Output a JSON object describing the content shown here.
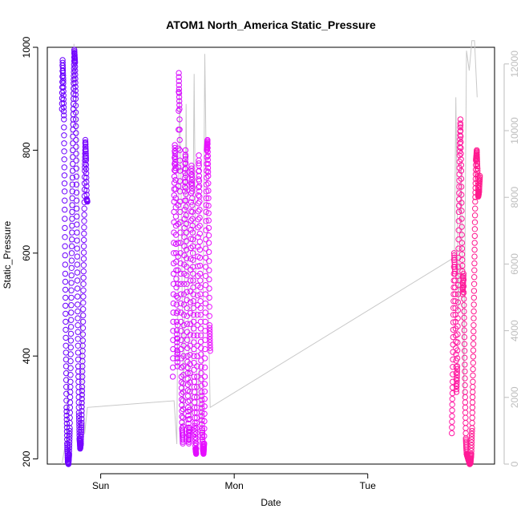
{
  "chart_data": {
    "type": "scatter",
    "title": "ATOM1 North_America Static_Pressure",
    "xlabel": "Date",
    "ylabel": "Static_Pressure",
    "x_ticks": [
      "Sun",
      "Mon",
      "Tue"
    ],
    "x_tick_positions": [
      1.0,
      2.0,
      3.0
    ],
    "xlim": [
      0.6,
      3.95
    ],
    "ylim": [
      190,
      1000
    ],
    "y_ticks": [
      200,
      400,
      600,
      800,
      1000
    ],
    "y2_ticks": [
      0,
      2000,
      4000,
      6000,
      8000,
      10000,
      12000
    ],
    "y2lim": [
      0,
      12500
    ],
    "grid": false,
    "legend": "none",
    "marker": "open-circle",
    "colors": {
      "series_start": "#6a00ff",
      "series_mid": "#ea10ff",
      "series_end": "#ff1a8c",
      "secondary_line": "#c8c8c8",
      "secondary_axis": "#bdbdbd",
      "primary_axis": "#000000"
    },
    "segments": [
      {
        "x_range": [
          0.71,
          0.9
        ],
        "color_range": [
          "#6a00ff",
          "#7a08ff"
        ],
        "values": [
          880,
          975,
          930,
          860,
          720,
          560,
          420,
          300,
          230,
          195,
          190,
          210,
          260,
          350,
          470,
          600,
          720,
          840,
          930,
          995,
          970,
          900,
          780,
          640,
          500,
          380,
          290,
          240,
          220,
          230,
          270,
          340,
          430,
          540,
          650,
          760,
          820,
          780,
          705,
          700
        ]
      },
      {
        "x_range": [
          1.54,
          1.82
        ],
        "color_range": [
          "#d40cff",
          "#ea10ff"
        ],
        "values": [
          360,
          520,
          700,
          810,
          760,
          600,
          450,
          380,
          620,
          950,
          880,
          700,
          520,
          360,
          260,
          230,
          380,
          560,
          720,
          800,
          690,
          540,
          400,
          300,
          230,
          260,
          420,
          610,
          770,
          720,
          600,
          480,
          360,
          270,
          220,
          210,
          300,
          480,
          650,
          790,
          700,
          560,
          440,
          330,
          260,
          220,
          210,
          230,
          360,
          520,
          680,
          800,
          820,
          750,
          620,
          460,
          410
        ]
      },
      {
        "x_range": [
          3.63,
          3.84
        ],
        "color_range": [
          "#ff1aa5",
          "#ff1a8c"
        ],
        "values": [
          250,
          350,
          480,
          600,
          560,
          440,
          330,
          380,
          520,
          680,
          790,
          860,
          760,
          620,
          520,
          560,
          450,
          330,
          240,
          210,
          205,
          200,
          195,
          190,
          192,
          210,
          260,
          350,
          460,
          580,
          700,
          780,
          800,
          760,
          710,
          720,
          750
        ]
      }
    ],
    "secondary_series": {
      "name": "",
      "x": [
        0.71,
        0.74,
        0.76,
        0.78,
        0.8,
        0.82,
        0.85,
        0.88,
        0.9,
        1.55,
        1.57,
        1.59,
        1.6,
        1.62,
        1.64,
        1.66,
        1.68,
        1.7,
        1.72,
        1.74,
        1.76,
        1.78,
        1.8,
        1.82,
        3.65,
        3.66,
        3.68,
        3.7,
        3.72,
        3.74,
        3.76,
        3.78,
        3.8,
        3.82
      ],
      "y": [
        0,
        700,
        3500,
        11000,
        12600,
        10500,
        5000,
        900,
        1700,
        1900,
        600,
        11200,
        9000,
        1100,
        10800,
        2500,
        1400,
        11700,
        1700,
        3000,
        700,
        12300,
        6000,
        1700,
        6200,
        11000,
        4500,
        9000,
        2000,
        12400,
        11800,
        12700,
        12700,
        11000
      ]
    }
  }
}
